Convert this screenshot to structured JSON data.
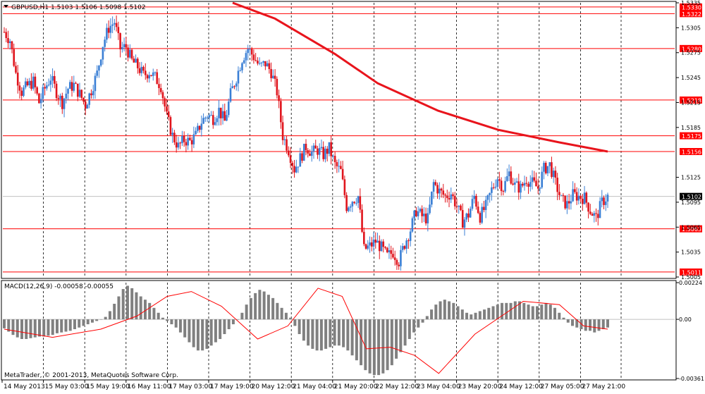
{
  "chart_header": {
    "symbol": "GBPUSD,H1",
    "ohlc": "1.5103 1.5106 1.5098 1.5102"
  },
  "colors": {
    "bull": "#3a7fd5",
    "bear": "#e0141c",
    "level_line": "#ff0000",
    "ma_line": "#e8141c",
    "macd_hist": "#808080",
    "macd_signal": "#ff0000",
    "grid": "#000000"
  },
  "chart_data": [
    {
      "type": "candlestick",
      "ylim": [
        1.5005,
        1.5335
      ],
      "y_ticks": [
        "1.5335",
        "1.5305",
        "1.5275",
        "1.5245",
        "1.5215",
        "1.5185",
        "1.5125",
        "1.5095",
        "1.5065",
        "1.5035",
        "1.5005"
      ],
      "x_ticks": [
        "14 May 2013",
        "15 May 03:00",
        "15 May 19:00",
        "16 May 11:00",
        "17 May 03:00",
        "17 May 19:00",
        "20 May 12:00",
        "21 May 04:00",
        "21 May 20:00",
        "22 May 12:00",
        "23 May 04:00",
        "23 May 20:00",
        "24 May 12:00",
        "27 May 05:00",
        "27 May 21:00"
      ],
      "levels": [
        1.533,
        1.5322,
        1.528,
        1.5218,
        1.5175,
        1.5156,
        1.5063,
        1.5011
      ],
      "level_labels": [
        "1.5330",
        "1.5322",
        "1.5280",
        "1.5218",
        "1.5175",
        "1.5156",
        "1.5063",
        "1.5011"
      ],
      "current_price": 1.5102,
      "current_price_label": "1.5102",
      "moving_average": {
        "x": [
          0.38,
          0.45,
          0.55,
          0.62,
          0.72,
          0.82,
          0.92,
          1.0
        ],
        "y": [
          1.5335,
          1.5316,
          1.5273,
          1.5238,
          1.5205,
          1.5182,
          1.5167,
          1.5156
        ]
      },
      "close_path": [
        1.53,
        1.529,
        1.525,
        1.5228,
        1.5235,
        1.524,
        1.5215,
        1.5232,
        1.5245,
        1.5228,
        1.5215,
        1.5232,
        1.5236,
        1.5225,
        1.5212,
        1.523,
        1.525,
        1.5285,
        1.5305,
        1.5312,
        1.528,
        1.5282,
        1.5265,
        1.5258,
        1.5248,
        1.5252,
        1.5245,
        1.5235,
        1.5198,
        1.5175,
        1.5162,
        1.517,
        1.5168,
        1.5175,
        1.5192,
        1.52,
        1.5196,
        1.5206,
        1.5192,
        1.5225,
        1.5245,
        1.5268,
        1.528,
        1.527,
        1.5258,
        1.5262,
        1.5252,
        1.5228,
        1.5175,
        1.5158,
        1.5135,
        1.5148,
        1.5162,
        1.5155,
        1.5158,
        1.5152,
        1.516,
        1.514,
        1.5132,
        1.509,
        1.5098,
        1.5102,
        1.5038,
        1.5042,
        1.5048,
        1.504,
        1.503,
        1.5035,
        1.5024,
        1.5045,
        1.5062,
        1.5085,
        1.5078,
        1.5075,
        1.5118,
        1.5108,
        1.5102,
        1.5106,
        1.509,
        1.5072,
        1.508,
        1.5102,
        1.5078,
        1.509,
        1.511,
        1.5125,
        1.5112,
        1.513,
        1.5115,
        1.5112,
        1.5123,
        1.5118,
        1.5112,
        1.5135,
        1.514,
        1.5118,
        1.5098,
        1.5092,
        1.5104,
        1.5102,
        1.51,
        1.5085,
        1.5076,
        1.5095,
        1.5102
      ]
    },
    {
      "type": "bar",
      "title": "MACD(12,26,9) -0.00058 -0.00055",
      "ylim": [
        -0.00361,
        0.00224
      ],
      "y_ticks": [
        "0.00224",
        "0.00",
        "-0.00361"
      ],
      "histogram": [
        -0.00055,
        -0.00075,
        -0.00095,
        -0.0011,
        -0.0012,
        -0.0012,
        -0.00115,
        -0.0011,
        -0.00105,
        -0.00105,
        -0.001,
        -0.00095,
        -0.00085,
        -0.0008,
        -0.00075,
        -0.0007,
        -0.0006,
        -0.0005,
        -0.0004,
        -0.0003,
        -0.0002,
        -0.0001,
        0.0,
        0.00015,
        0.0005,
        0.00095,
        0.0014,
        0.00185,
        0.00205,
        0.0019,
        0.00165,
        0.0014,
        0.0012,
        0.001,
        0.0007,
        0.0004,
        0.0001,
        -0.0001,
        -0.0003,
        -0.0005,
        -0.0008,
        -0.0011,
        -0.0014,
        -0.0017,
        -0.0019,
        -0.0019,
        -0.0018,
        -0.0016,
        -0.0014,
        -0.0012,
        -0.0009,
        -0.0006,
        -0.0003,
        0.0,
        0.0004,
        0.0009,
        0.0013,
        0.0016,
        0.0018,
        0.0017,
        0.0015,
        0.0013,
        0.001,
        0.0007,
        0.0004,
        0.0001,
        -0.0004,
        -0.0009,
        -0.0013,
        -0.0016,
        -0.0018,
        -0.0019,
        -0.0019,
        -0.0018,
        -0.0017,
        -0.0016,
        -0.0016,
        -0.0017,
        -0.0019,
        -0.0022,
        -0.0025,
        -0.0028,
        -0.0031,
        -0.0033,
        -0.0034,
        -0.0034,
        -0.0033,
        -0.0031,
        -0.0028,
        -0.0024,
        -0.002,
        -0.0016,
        -0.0012,
        -0.0008,
        -0.0005,
        -0.0002,
        0.0002,
        0.0006,
        0.0009,
        0.0011,
        0.0012,
        0.0011,
        0.001,
        0.0008,
        0.0006,
        0.0004,
        0.0003,
        0.0004,
        0.0005,
        0.0006,
        0.0007,
        0.0008,
        0.0009,
        0.001,
        0.001,
        0.001,
        0.0011,
        0.0011,
        0.001,
        0.0009,
        0.0008,
        0.0008,
        0.0009,
        0.001,
        0.0009,
        0.0007,
        0.0004,
        0.0001,
        -0.0002,
        -0.0004,
        -0.0005,
        -0.0006,
        -0.0007,
        -0.0007,
        -0.0008,
        -0.0007,
        -0.0006,
        -0.0005
      ],
      "signal_x": [
        0.0,
        0.08,
        0.16,
        0.22,
        0.27,
        0.31,
        0.36,
        0.42,
        0.47,
        0.52,
        0.56,
        0.6,
        0.64,
        0.68,
        0.72,
        0.78,
        0.86,
        0.92,
        0.96,
        1.0
      ],
      "signal_y": [
        -0.0006,
        -0.0011,
        -0.0006,
        0.0002,
        0.0014,
        0.0017,
        0.0008,
        -0.0012,
        -0.0004,
        0.0019,
        0.0014,
        -0.0018,
        -0.0017,
        -0.0022,
        -0.0033,
        -0.0009,
        0.0011,
        0.0009,
        -0.0004,
        -0.0006
      ]
    }
  ],
  "footer": {
    "copyright": "MetaTrader, © 2001-2013, MetaQuotes Software Corp."
  }
}
